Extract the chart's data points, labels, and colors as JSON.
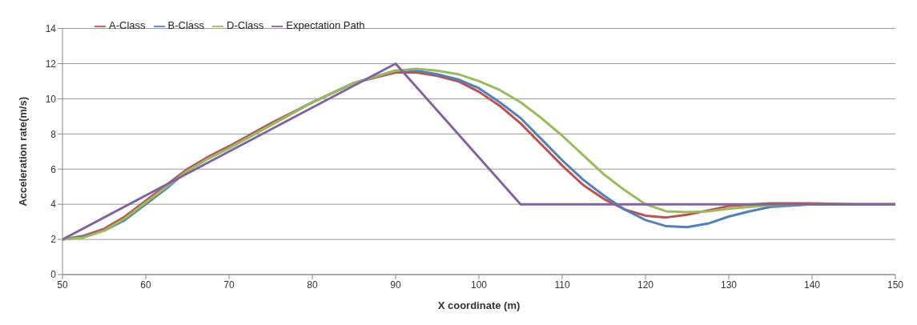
{
  "chart_data": {
    "type": "line",
    "xlabel": "X coordinate (m)",
    "ylabel": "Acceleration rate(m/s)",
    "xlim": [
      50,
      150
    ],
    "xticks": [
      50,
      60,
      70,
      80,
      90,
      100,
      110,
      120,
      130,
      140,
      150
    ],
    "ylim": [
      0,
      14
    ],
    "yticks": [
      0,
      2,
      4,
      6,
      8,
      10,
      12,
      14
    ],
    "grid": "y",
    "legend": "top left",
    "marker": "none",
    "line_style": "solid",
    "series": [
      {
        "name": "A-Class",
        "color": "#c0504d",
        "x": [
          50,
          52.5,
          55,
          57.5,
          60,
          62.5,
          65,
          67.5,
          70,
          75,
          80,
          85,
          90,
          92.5,
          95,
          97.5,
          100,
          102.5,
          105,
          107.5,
          110,
          112.5,
          115,
          117.5,
          120,
          122.5,
          125,
          127.5,
          130,
          135,
          140,
          145,
          150
        ],
        "values": [
          2,
          2.2,
          2.6,
          3.3,
          4.2,
          5.1,
          6.0,
          6.7,
          7.3,
          8.6,
          9.8,
          10.9,
          11.5,
          11.5,
          11.3,
          11.0,
          10.4,
          9.6,
          8.6,
          7.4,
          6.2,
          5.1,
          4.3,
          3.7,
          3.35,
          3.25,
          3.4,
          3.65,
          3.9,
          4.05,
          4.05,
          4.0,
          4.0
        ]
      },
      {
        "name": "B-Class",
        "color": "#4f81bd",
        "x": [
          50,
          52.5,
          55,
          57.5,
          60,
          62.5,
          65,
          67.5,
          70,
          75,
          80,
          85,
          90,
          92.5,
          95,
          97.5,
          100,
          102.5,
          105,
          107.5,
          110,
          112.5,
          115,
          117.5,
          120,
          122.5,
          125,
          127.5,
          130,
          132.5,
          135,
          140,
          150
        ],
        "values": [
          2,
          2.15,
          2.5,
          3.1,
          4.0,
          4.9,
          5.9,
          6.6,
          7.2,
          8.5,
          9.8,
          10.9,
          11.6,
          11.6,
          11.4,
          11.1,
          10.6,
          9.8,
          8.9,
          7.7,
          6.5,
          5.4,
          4.5,
          3.7,
          3.1,
          2.75,
          2.7,
          2.9,
          3.3,
          3.6,
          3.85,
          4.0,
          4.0
        ]
      },
      {
        "name": "D-Class",
        "color": "#9bbb59",
        "x": [
          50,
          52.5,
          55,
          57.5,
          60,
          62.5,
          65,
          67.5,
          70,
          75,
          80,
          85,
          90,
          92.5,
          95,
          97.5,
          100,
          102.5,
          105,
          107.5,
          110,
          112.5,
          115,
          117.5,
          120,
          122.5,
          125,
          127.5,
          130,
          135,
          140,
          150
        ],
        "values": [
          2,
          2.1,
          2.5,
          3.2,
          4.1,
          5.0,
          5.9,
          6.6,
          7.2,
          8.5,
          9.8,
          10.9,
          11.6,
          11.7,
          11.6,
          11.4,
          11.0,
          10.5,
          9.8,
          8.9,
          7.9,
          6.8,
          5.7,
          4.8,
          4.0,
          3.6,
          3.55,
          3.6,
          3.75,
          3.95,
          4.0,
          4.0
        ]
      },
      {
        "name": "Expectation Path",
        "color": "#8064a2",
        "x": [
          50,
          90,
          105,
          150
        ],
        "values": [
          2,
          12,
          4,
          4
        ]
      }
    ]
  }
}
